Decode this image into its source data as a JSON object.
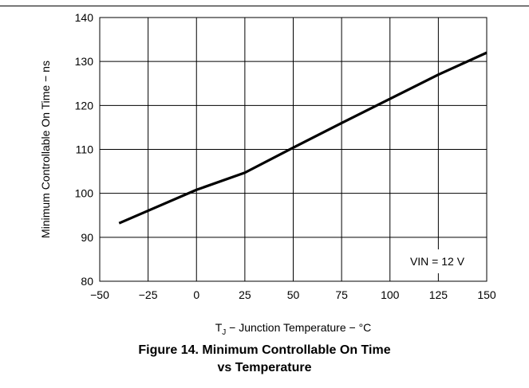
{
  "chart_data": {
    "type": "line",
    "ylabel": "Minimum Controllable On Time − ns",
    "xlabel": {
      "prefix": "T",
      "subscript": "J",
      "rest": " − Junction Temperature − °C"
    },
    "x_ticks": [
      -50,
      -25,
      0,
      25,
      50,
      75,
      100,
      125,
      150
    ],
    "x_tick_labels": [
      "−50",
      "−25",
      "0",
      "25",
      "50",
      "75",
      "100",
      "125",
      "150"
    ],
    "y_ticks": [
      80,
      90,
      100,
      110,
      120,
      130,
      140
    ],
    "y_tick_labels": [
      "80",
      "90",
      "100",
      "110",
      "120",
      "130",
      "140"
    ],
    "xlim": [
      -50,
      150
    ],
    "ylim": [
      80,
      140
    ],
    "grid": true,
    "annotation": "VIN = 12 V",
    "series": [
      {
        "x": [
          -40,
          0,
          25,
          50,
          75,
          100,
          125,
          150
        ],
        "y": [
          93.2,
          100.8,
          104.7,
          110.4,
          116.0,
          121.5,
          127.0,
          132.0
        ]
      }
    ],
    "line_color": "#000000"
  },
  "caption": {
    "line1": "Figure 14. Minimum Controllable On Time",
    "line2": "vs Temperature"
  }
}
